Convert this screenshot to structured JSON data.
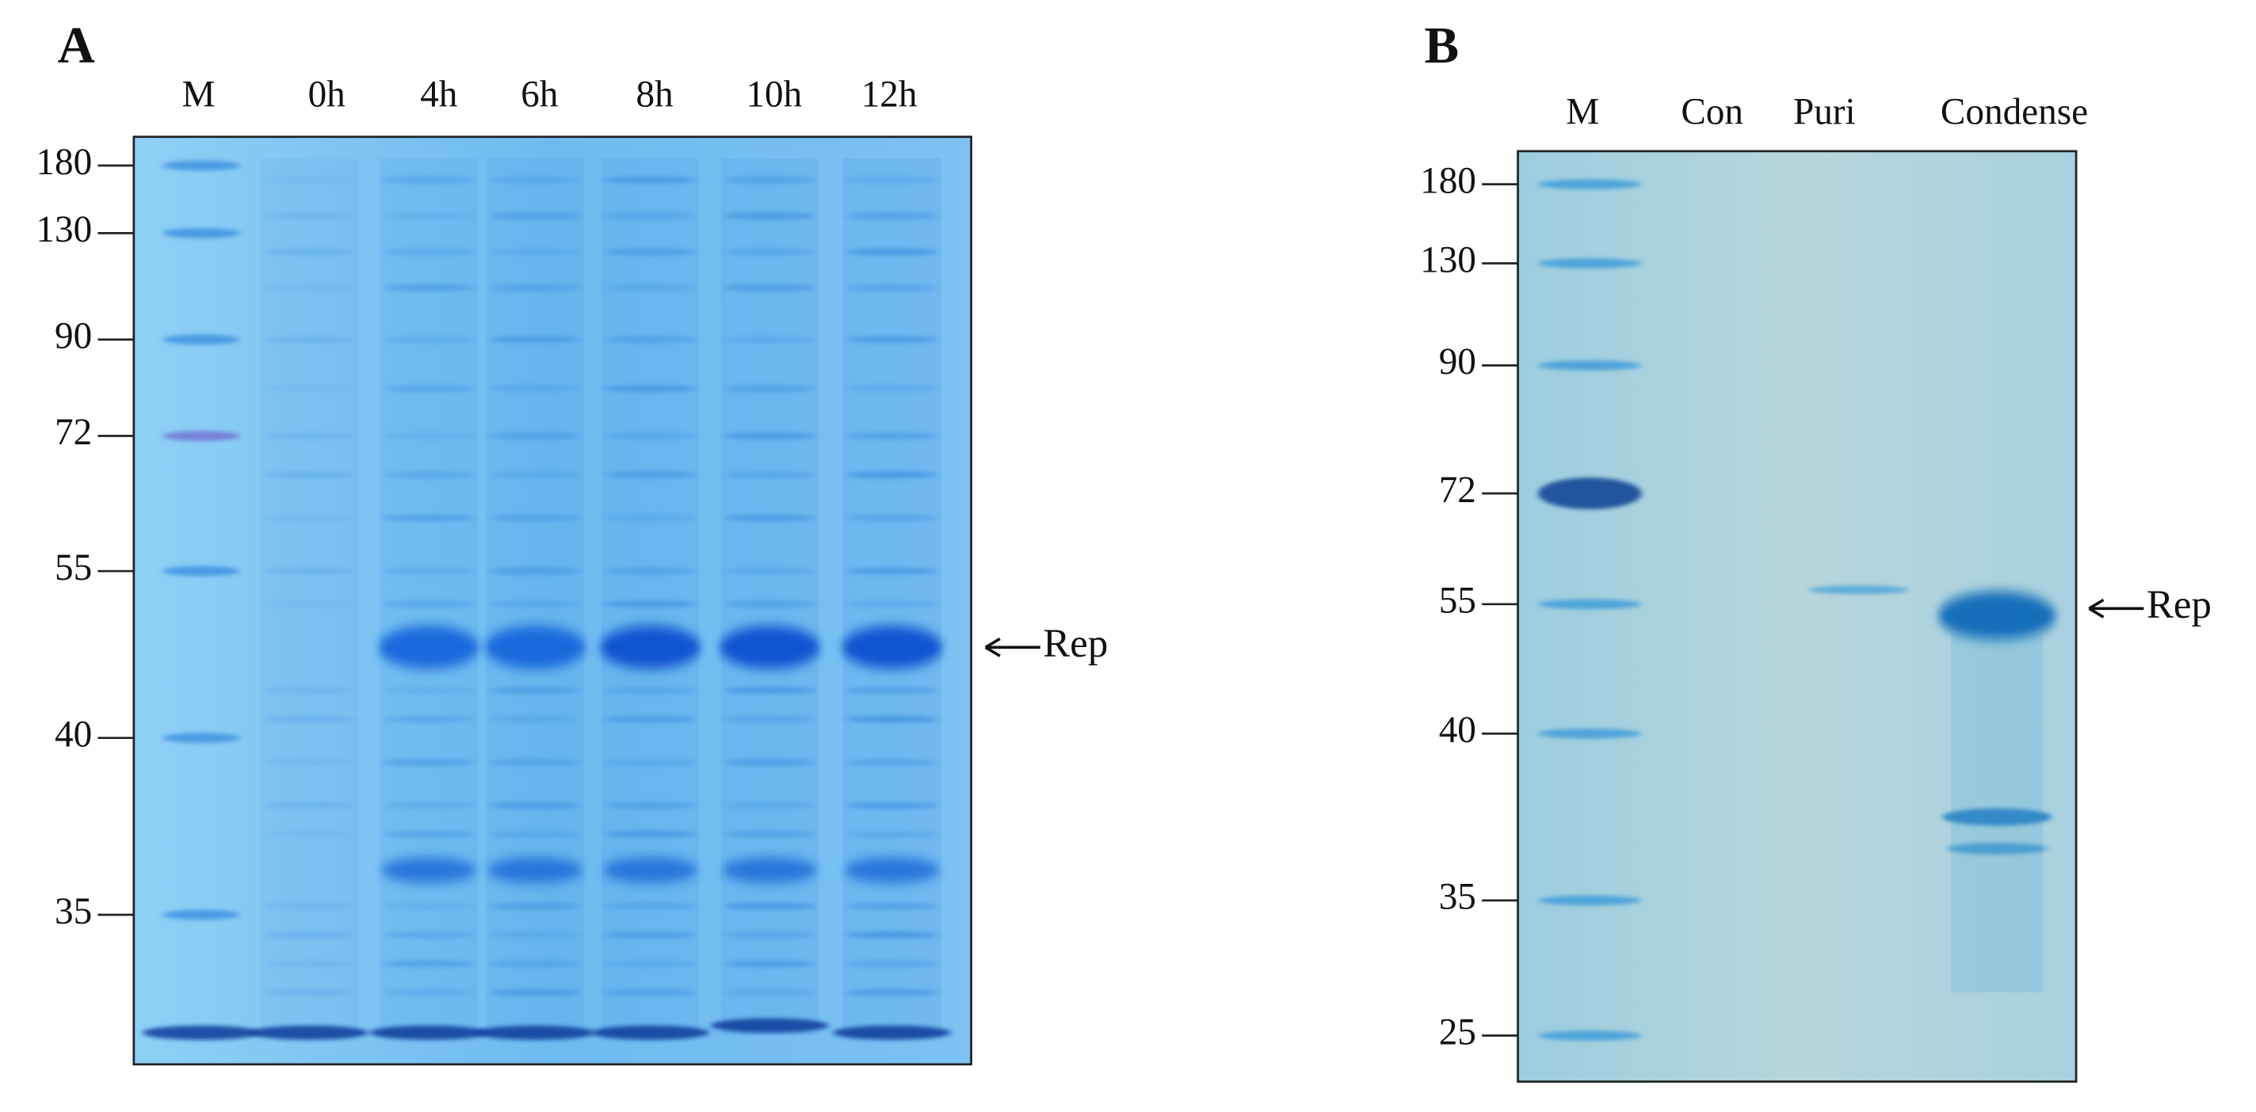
{
  "panels": [
    {
      "label": "A",
      "lanes": [
        "M",
        "0h",
        "4h",
        "6h",
        "8h",
        "10h",
        "12h"
      ],
      "markers": [
        180,
        130,
        90,
        72,
        55,
        40,
        35
      ],
      "band_label": "Rep"
    },
    {
      "label": "B",
      "lanes": [
        "M",
        "Con",
        "Puri",
        "Condense"
      ],
      "markers": [
        180,
        130,
        90,
        72,
        55,
        40,
        35,
        25
      ],
      "band_label": "Rep"
    }
  ]
}
